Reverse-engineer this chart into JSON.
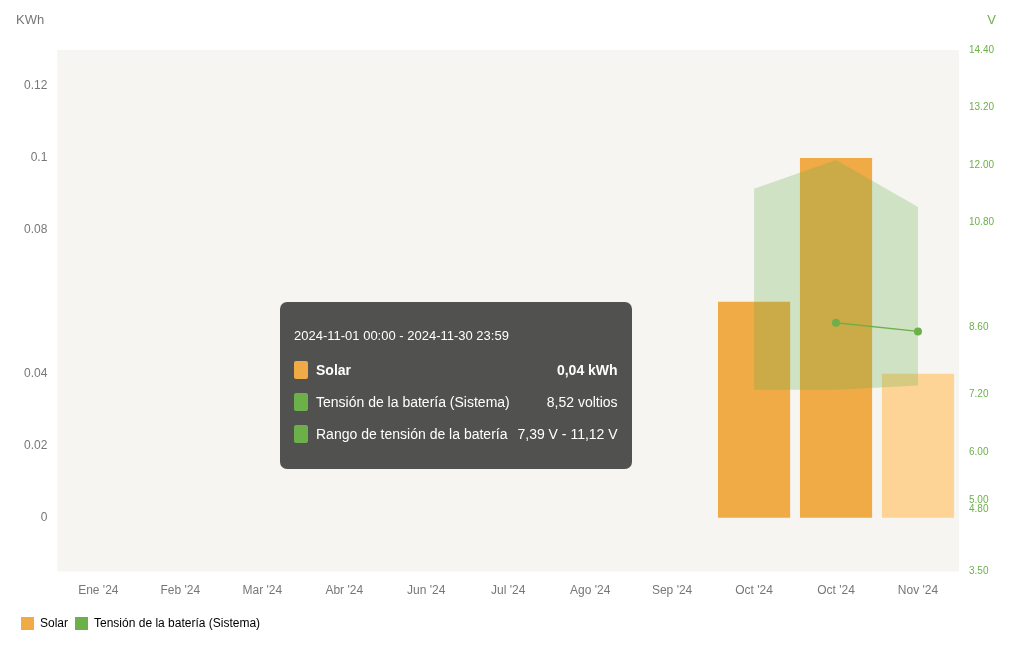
{
  "chart_data": {
    "type": "bar",
    "categories": [
      "Ene '24",
      "Feb '24",
      "Mar '24",
      "Abr '24",
      "Jun '24",
      "Jul '24",
      "Ago '24",
      "Sep '24",
      "Oct '24",
      "Oct '24",
      "Nov '24"
    ],
    "series": [
      {
        "name": "Solar",
        "type": "bar",
        "color": "#f0aa46",
        "colors": [
          "#f0aa46",
          "#f0aa46",
          "#f0aa46",
          "#f0aa46",
          "#f0aa46",
          "#f0aa46",
          "#f0aa46",
          "#f0aa46",
          "#f0aa46",
          "#f0aa46",
          "#fdd496"
        ],
        "values": [
          null,
          null,
          null,
          null,
          null,
          null,
          null,
          null,
          0.06,
          0.1,
          0.04
        ]
      },
      {
        "name": "Tensión de la batería (Sistema)",
        "type": "line",
        "axis": "y2",
        "color": "#6cb04a",
        "marker": "circle",
        "values": [
          null,
          null,
          null,
          null,
          null,
          null,
          null,
          null,
          null,
          8.7,
          8.52
        ],
        "lower": [
          null,
          null,
          null,
          null,
          null,
          null,
          null,
          null,
          7.3,
          7.3,
          7.39
        ],
        "upper": [
          null,
          null,
          null,
          null,
          null,
          null,
          null,
          null,
          11.5,
          12.1,
          11.12
        ]
      }
    ],
    "ylabel": "KWh",
    "y2label": "V",
    "ylim": [
      -0.015,
      0.13
    ],
    "yticks": [
      0,
      0.02,
      0.04,
      0.08,
      0.1,
      0.12
    ],
    "y2lim": [
      3.5,
      14.4
    ],
    "y2ticks": [
      {
        "value": 3.5,
        "label": "3.50"
      },
      {
        "value": 4.8,
        "label": "4.80"
      },
      {
        "value": 5,
        "label": "5.00"
      },
      {
        "value": 6,
        "label": "6.00"
      },
      {
        "value": 7.2,
        "label": "7.20"
      },
      {
        "value": 8.6,
        "label": "8.60"
      },
      {
        "value": 10.8,
        "label": "10.80"
      },
      {
        "value": 12,
        "label": "12.00"
      },
      {
        "value": 13.2,
        "label": "13.20"
      },
      {
        "value": 14.4,
        "label": "14.40"
      }
    ],
    "legend": "bottom left",
    "annotations": [
      "2024-11-01 00:00 - 2024-11-30 23:59",
      "Solar",
      "0,04 kWh",
      "Tensión de la batería (Sistema)",
      "8,52 voltios",
      "Rango de tensión de la batería",
      "7,39 V - 11,12 V"
    ]
  }
}
